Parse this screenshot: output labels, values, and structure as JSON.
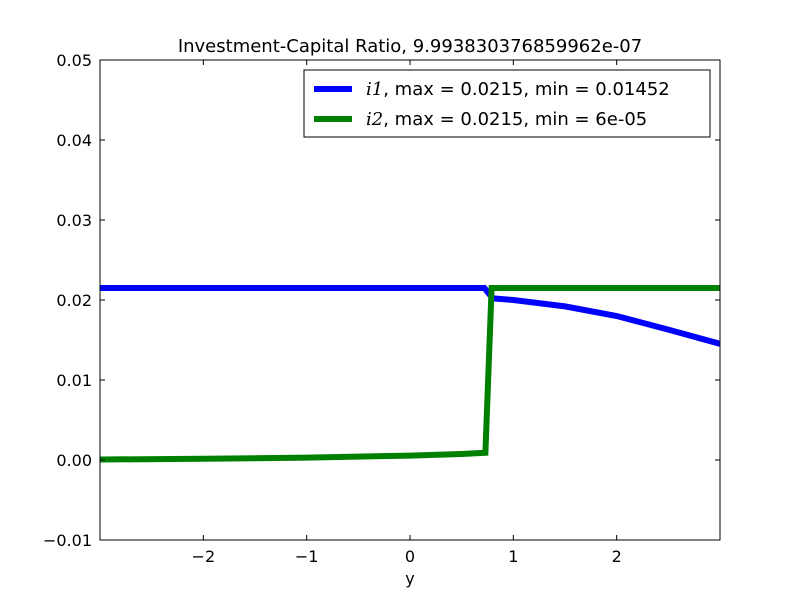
{
  "chart_data": {
    "type": "line",
    "title": "Investment-Capital Ratio, 9.993830376859962e-07",
    "xlabel": "y",
    "ylabel": "",
    "xlim": [
      -3,
      3
    ],
    "ylim": [
      -0.01,
      0.05
    ],
    "x_ticks": [
      -2,
      -1,
      0,
      1,
      2
    ],
    "x_tick_labels": [
      "−2",
      "−1",
      "0",
      "1",
      "2"
    ],
    "y_ticks": [
      -0.01,
      0.0,
      0.01,
      0.02,
      0.03,
      0.04,
      0.05
    ],
    "y_tick_labels": [
      "−0.01",
      "0.00",
      "0.01",
      "0.02",
      "0.03",
      "0.04",
      "0.05"
    ],
    "grid": false,
    "legend_position": "top-right",
    "series": [
      {
        "name": "i1",
        "legend_suffix": ", max = 0.0215, min = 0.01452",
        "color": "#0000ff",
        "x": [
          -3.0,
          -2.0,
          -1.0,
          0.0,
          0.5,
          0.72,
          0.8,
          1.0,
          1.5,
          2.0,
          2.5,
          3.0
        ],
        "y": [
          0.0215,
          0.0215,
          0.0215,
          0.0215,
          0.0215,
          0.0215,
          0.0202,
          0.02,
          0.0192,
          0.018,
          0.0163,
          0.01452
        ]
      },
      {
        "name": "i2",
        "legend_suffix": ", max = 0.0215, min = 6e-05",
        "color": "#008000",
        "x": [
          -3.0,
          -2.0,
          -1.0,
          0.0,
          0.5,
          0.73,
          0.79,
          1.0,
          2.0,
          3.0
        ],
        "y": [
          6e-05,
          0.00015,
          0.0003,
          0.00055,
          0.00075,
          0.0009,
          0.0215,
          0.0215,
          0.0215,
          0.0215
        ]
      }
    ]
  }
}
